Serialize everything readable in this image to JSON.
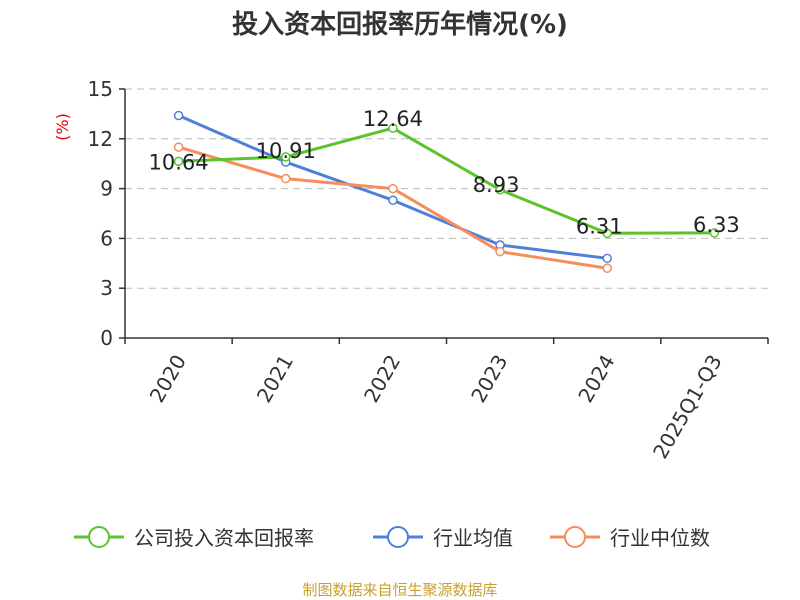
{
  "chart_data": {
    "type": "line",
    "title": "投入资本回报率历年情况(%)",
    "ylabel": "(%)",
    "xlabel": "",
    "categories": [
      "2020",
      "2021",
      "2022",
      "2023",
      "2024",
      "2025Q1-Q3"
    ],
    "ylim": [
      0,
      15
    ],
    "yticks": [
      0,
      3,
      6,
      9,
      12,
      15
    ],
    "series": [
      {
        "name": "公司投入资本回报率",
        "color": "#5bc42c",
        "values": [
          10.64,
          10.91,
          12.64,
          8.93,
          6.31,
          6.33
        ],
        "labels": [
          "10.64",
          "10.91",
          "12.64",
          "8.93",
          "6.31",
          "6.33"
        ]
      },
      {
        "name": "行业均值",
        "color": "#4f80d9",
        "values": [
          13.4,
          10.6,
          8.3,
          5.6,
          4.8,
          null
        ]
      },
      {
        "name": "行业中位数",
        "color": "#f68d5b",
        "values": [
          11.5,
          9.6,
          9.0,
          5.2,
          4.2,
          null
        ]
      }
    ],
    "grid": true,
    "legend_position": "bottom"
  },
  "source": "制图数据来自恒生聚源数据库"
}
